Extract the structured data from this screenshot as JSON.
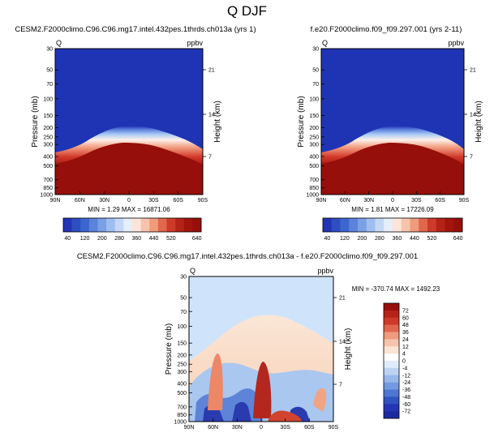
{
  "page_title": "Q DJF",
  "colors": {
    "dark_blue": "#1e33b4",
    "dark_red": "#960f0a",
    "diff_background": "#cfe4fb",
    "diff_positive": "#fbe3d2"
  },
  "chart_data": [
    {
      "type": "heatmap",
      "title": "CESM2.F2000climo.C96.C96.mg17.intel.432pes.1thrds.ch013a (yrs 1)",
      "left_label": "Q",
      "right_label": "ppbv",
      "ylabel": "Pressure (mb)",
      "ylabel_right": "Height (km)",
      "x_ticks": [
        "90N",
        "60N",
        "30N",
        "0",
        "30S",
        "60S",
        "90S"
      ],
      "y_ticks": [
        "30",
        "50",
        "70",
        "100",
        "150",
        "200",
        "250",
        "300",
        "400",
        "500",
        "700",
        "850",
        "1000"
      ],
      "y_ticks_right": [
        "21",
        "14",
        "7"
      ],
      "ylim": [
        1000,
        30
      ],
      "stats": "MIN =   1.29   MAX = 16871.06",
      "colorbar_levels": [
        40,
        80,
        120,
        160,
        200,
        240,
        280,
        320,
        360,
        400,
        440,
        480,
        520,
        560,
        600,
        640
      ],
      "colorbar_labels": [
        "40",
        "120",
        "200",
        "280",
        "360",
        "440",
        "520",
        "640"
      ]
    },
    {
      "type": "heatmap",
      "title": "f.e20.F2000climo.f09_f09.297.001 (yrs 2-11)",
      "left_label": "Q",
      "right_label": "ppbv",
      "ylabel": "Pressure (mb)",
      "ylabel_right": "Height (km)",
      "x_ticks": [
        "90N",
        "60N",
        "30N",
        "0",
        "30S",
        "60S",
        "90S"
      ],
      "y_ticks": [
        "30",
        "50",
        "70",
        "100",
        "150",
        "200",
        "250",
        "300",
        "400",
        "500",
        "700",
        "850",
        "1000"
      ],
      "y_ticks_right": [
        "21",
        "14",
        "7"
      ],
      "ylim": [
        1000,
        30
      ],
      "stats": "MIN =   1.81   MAX = 17226.09",
      "colorbar_levels": [
        40,
        80,
        120,
        160,
        200,
        240,
        280,
        320,
        360,
        400,
        440,
        480,
        520,
        560,
        600,
        640
      ],
      "colorbar_labels": [
        "40",
        "120",
        "200",
        "280",
        "360",
        "440",
        "520",
        "640"
      ]
    },
    {
      "type": "heatmap",
      "title": "CESM2.F2000climo.C96.C96.mg17.intel.432pes.1thrds.ch013a - f.e20.F2000climo.f09_f09.297.001",
      "left_label": "Q",
      "right_label": "ppbv",
      "ylabel": "Pressure (mb)",
      "ylabel_right": "Height (km)",
      "x_ticks": [
        "90N",
        "60N",
        "30N",
        "0",
        "30S",
        "60S",
        "90S"
      ],
      "y_ticks": [
        "30",
        "50",
        "70",
        "100",
        "150",
        "200",
        "250",
        "300",
        "400",
        "500",
        "700",
        "850",
        "1000"
      ],
      "y_ticks_right": [
        "21",
        "14",
        "7"
      ],
      "ylim": [
        1000,
        30
      ],
      "stats": "MIN = -370.74   MAX = 1492.23",
      "colorbar_labels": [
        "72",
        "60",
        "48",
        "36",
        "24",
        "12",
        "4",
        "0",
        "-4",
        "-12",
        "-24",
        "-36",
        "-48",
        "-60",
        "-72"
      ]
    }
  ]
}
